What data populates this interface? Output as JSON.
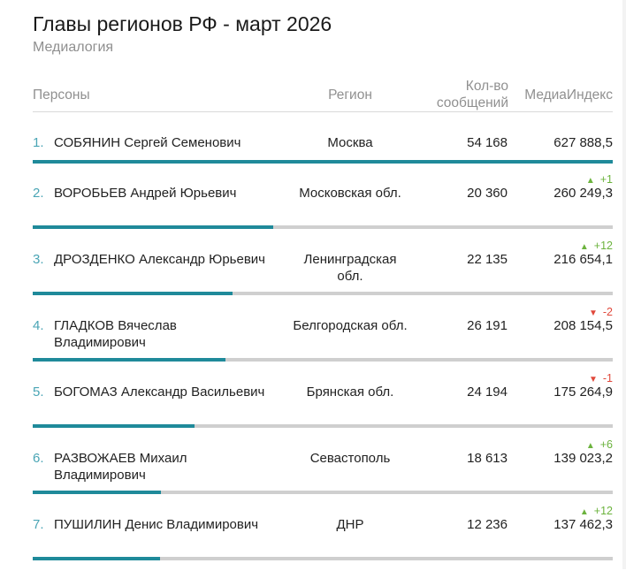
{
  "header": {
    "title": "Главы регионов РФ - март 2026",
    "subtitle": "Медиалогия"
  },
  "columns": {
    "persons": "Персоны",
    "region": "Регион",
    "count_line1": "Кол-во",
    "count_line2": "сообщений",
    "index": "МедиаИндекс"
  },
  "colors": {
    "bar_fill": "#1f8a9a",
    "bar_track": "#cfcfcf",
    "rank_number": "#4aa5b5",
    "change_up": "#6cb33e",
    "change_down": "#e0483b"
  },
  "rows": [
    {
      "rank": "1.",
      "name": "СОБЯНИН Сергей Семенович",
      "region": "Москва",
      "count": "54 168",
      "index": "627 888,5",
      "change": "",
      "direction": "none",
      "index_share": 1.0
    },
    {
      "rank": "2.",
      "name": "ВОРОБЬЕВ Андрей Юрьевич",
      "region": "Московская обл.",
      "count": "20 360",
      "index": "260 249,3",
      "change": "+1",
      "direction": "up",
      "index_share": 0.4145
    },
    {
      "rank": "3.",
      "name": "ДРОЗДЕНКО Александр Юрьевич",
      "region": "Ленинградская обл.",
      "count": "22 135",
      "index": "216 654,1",
      "change": "+12",
      "direction": "up",
      "index_share": 0.3451
    },
    {
      "rank": "4.",
      "name": "ГЛАДКОВ Вячеслав Владимирович",
      "region": "Белгородская обл.",
      "count": "26 191",
      "index": "208 154,5",
      "change": "-2",
      "direction": "down",
      "index_share": 0.3315
    },
    {
      "rank": "5.",
      "name": "БОГОМАЗ Александр Васильевич",
      "region": "Брянская обл.",
      "count": "24 194",
      "index": "175 264,9",
      "change": "-1",
      "direction": "down",
      "index_share": 0.2791
    },
    {
      "rank": "6.",
      "name": "РАЗВОЖАЕВ Михаил Владимирович",
      "region": "Севастополь",
      "count": "18 613",
      "index": "139 023,2",
      "change": "+6",
      "direction": "up",
      "index_share": 0.2214
    },
    {
      "rank": "7.",
      "name": "ПУШИЛИН Денис Владимирович",
      "region": "ДНР",
      "count": "12 236",
      "index": "137 462,3",
      "change": "+12",
      "direction": "up",
      "index_share": 0.2189
    }
  ]
}
